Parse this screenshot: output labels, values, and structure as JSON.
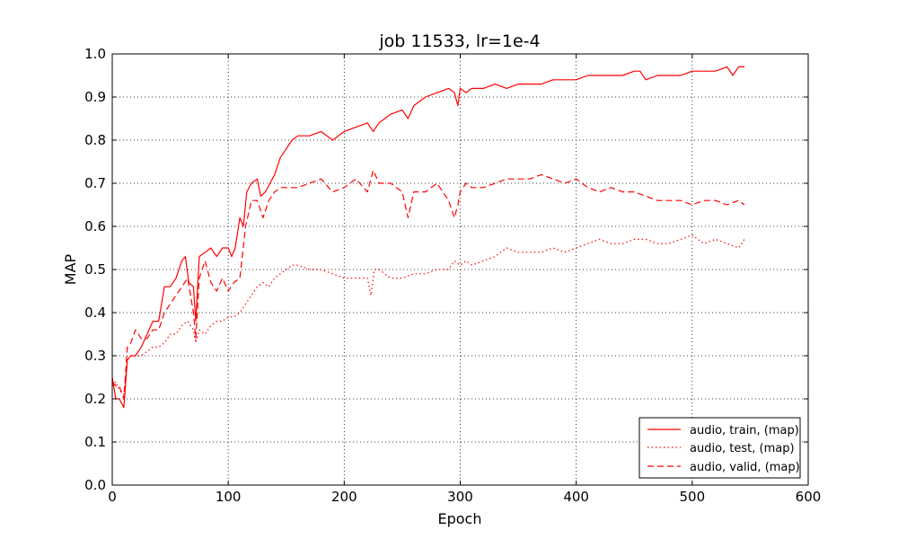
{
  "chart_data": {
    "type": "line",
    "title": "job 11533, lr=1e-4",
    "xlabel": "Epoch",
    "ylabel": "MAP",
    "xlim": [
      0,
      600
    ],
    "ylim": [
      0.0,
      1.0
    ],
    "xticks": [
      0,
      100,
      200,
      300,
      400,
      500,
      600
    ],
    "yticks": [
      0.0,
      0.1,
      0.2,
      0.3,
      0.4,
      0.5,
      0.6,
      0.7,
      0.8,
      0.9,
      1.0
    ],
    "xtick_labels": [
      "0",
      "100",
      "200",
      "300",
      "400",
      "500",
      "600"
    ],
    "ytick_labels": [
      "0.0",
      "0.1",
      "0.2",
      "0.3",
      "0.4",
      "0.5",
      "0.6",
      "0.7",
      "0.8",
      "0.9",
      "1.0"
    ],
    "grid": true,
    "legend_position": "lower-right",
    "color": "#ff0000",
    "series": [
      {
        "name": "audio, train, (map)",
        "style": "solid",
        "x": [
          0,
          3,
          6,
          10,
          13,
          16,
          20,
          25,
          30,
          35,
          40,
          45,
          50,
          55,
          60,
          63,
          66,
          70,
          72,
          75,
          80,
          85,
          90,
          95,
          100,
          103,
          106,
          110,
          113,
          116,
          120,
          125,
          128,
          132,
          136,
          140,
          145,
          150,
          155,
          160,
          170,
          180,
          190,
          200,
          210,
          220,
          225,
          230,
          235,
          240,
          250,
          255,
          260,
          270,
          280,
          290,
          295,
          298,
          300,
          305,
          310,
          320,
          330,
          340,
          350,
          360,
          370,
          380,
          390,
          400,
          410,
          420,
          430,
          440,
          450,
          455,
          460,
          470,
          480,
          490,
          500,
          510,
          520,
          530,
          535,
          540,
          545
        ],
        "y": [
          0.25,
          0.2,
          0.2,
          0.18,
          0.29,
          0.3,
          0.3,
          0.32,
          0.35,
          0.38,
          0.38,
          0.46,
          0.46,
          0.48,
          0.52,
          0.53,
          0.47,
          0.46,
          0.38,
          0.53,
          0.54,
          0.55,
          0.53,
          0.55,
          0.55,
          0.53,
          0.55,
          0.62,
          0.6,
          0.68,
          0.7,
          0.71,
          0.67,
          0.68,
          0.7,
          0.72,
          0.76,
          0.78,
          0.8,
          0.81,
          0.81,
          0.82,
          0.8,
          0.82,
          0.83,
          0.84,
          0.82,
          0.84,
          0.85,
          0.86,
          0.87,
          0.85,
          0.88,
          0.9,
          0.91,
          0.92,
          0.91,
          0.88,
          0.92,
          0.91,
          0.92,
          0.92,
          0.93,
          0.92,
          0.93,
          0.93,
          0.93,
          0.94,
          0.94,
          0.94,
          0.95,
          0.95,
          0.95,
          0.95,
          0.96,
          0.96,
          0.94,
          0.95,
          0.95,
          0.95,
          0.96,
          0.96,
          0.96,
          0.97,
          0.95,
          0.97,
          0.97
        ]
      },
      {
        "name": "audio, test, (map)",
        "style": "dotted",
        "x": [
          0,
          3,
          6,
          10,
          13,
          16,
          20,
          25,
          30,
          35,
          40,
          45,
          50,
          55,
          60,
          65,
          70,
          72,
          75,
          80,
          85,
          90,
          95,
          100,
          105,
          110,
          115,
          120,
          125,
          130,
          135,
          140,
          145,
          150,
          155,
          160,
          170,
          180,
          190,
          200,
          210,
          220,
          223,
          226,
          230,
          240,
          250,
          260,
          270,
          280,
          290,
          295,
          300,
          305,
          310,
          320,
          330,
          340,
          350,
          360,
          370,
          380,
          390,
          400,
          410,
          420,
          430,
          440,
          450,
          460,
          470,
          480,
          490,
          500,
          510,
          520,
          530,
          540,
          545
        ],
        "y": [
          0.23,
          0.24,
          0.22,
          0.21,
          0.29,
          0.3,
          0.3,
          0.3,
          0.31,
          0.32,
          0.32,
          0.33,
          0.35,
          0.35,
          0.37,
          0.38,
          0.36,
          0.33,
          0.36,
          0.35,
          0.37,
          0.38,
          0.38,
          0.39,
          0.39,
          0.4,
          0.42,
          0.44,
          0.46,
          0.47,
          0.46,
          0.48,
          0.49,
          0.5,
          0.51,
          0.51,
          0.5,
          0.5,
          0.49,
          0.48,
          0.48,
          0.48,
          0.44,
          0.5,
          0.5,
          0.48,
          0.48,
          0.49,
          0.49,
          0.5,
          0.5,
          0.52,
          0.51,
          0.52,
          0.51,
          0.52,
          0.53,
          0.55,
          0.54,
          0.54,
          0.54,
          0.55,
          0.54,
          0.55,
          0.56,
          0.57,
          0.56,
          0.56,
          0.57,
          0.57,
          0.56,
          0.56,
          0.57,
          0.58,
          0.56,
          0.57,
          0.56,
          0.55,
          0.57
        ]
      },
      {
        "name": "audio, valid, (map)",
        "style": "dashed",
        "x": [
          0,
          3,
          6,
          10,
          13,
          16,
          20,
          25,
          30,
          35,
          40,
          45,
          50,
          55,
          60,
          65,
          70,
          72,
          75,
          80,
          85,
          90,
          95,
          100,
          105,
          110,
          115,
          120,
          125,
          130,
          135,
          140,
          145,
          150,
          160,
          170,
          180,
          190,
          200,
          210,
          220,
          225,
          230,
          240,
          250,
          255,
          260,
          270,
          280,
          290,
          295,
          298,
          300,
          305,
          310,
          320,
          330,
          340,
          350,
          360,
          370,
          380,
          390,
          400,
          410,
          420,
          430,
          440,
          450,
          460,
          470,
          480,
          490,
          500,
          510,
          520,
          530,
          540,
          545
        ],
        "y": [
          0.24,
          0.23,
          0.23,
          0.2,
          0.32,
          0.33,
          0.36,
          0.34,
          0.34,
          0.36,
          0.36,
          0.4,
          0.42,
          0.44,
          0.46,
          0.48,
          0.4,
          0.34,
          0.48,
          0.52,
          0.47,
          0.45,
          0.48,
          0.45,
          0.47,
          0.48,
          0.6,
          0.66,
          0.66,
          0.62,
          0.66,
          0.68,
          0.69,
          0.69,
          0.69,
          0.7,
          0.71,
          0.68,
          0.69,
          0.71,
          0.68,
          0.73,
          0.7,
          0.7,
          0.68,
          0.62,
          0.68,
          0.68,
          0.7,
          0.66,
          0.62,
          0.65,
          0.68,
          0.7,
          0.69,
          0.69,
          0.7,
          0.71,
          0.71,
          0.71,
          0.72,
          0.71,
          0.7,
          0.71,
          0.69,
          0.68,
          0.69,
          0.68,
          0.68,
          0.67,
          0.66,
          0.66,
          0.66,
          0.65,
          0.66,
          0.66,
          0.65,
          0.66,
          0.65
        ]
      }
    ]
  }
}
